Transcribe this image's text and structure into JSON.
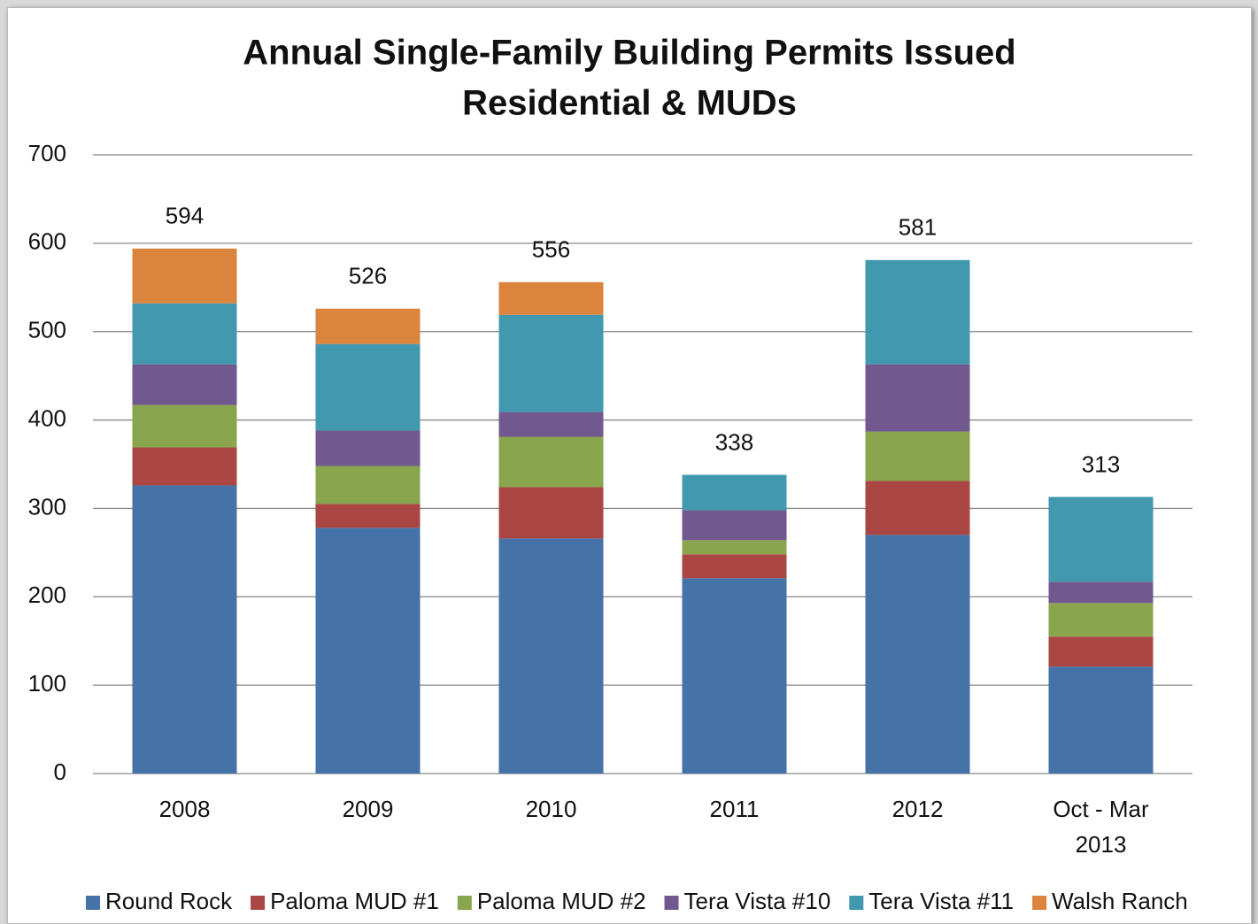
{
  "chart_data": {
    "type": "stacked_bar",
    "title": "Annual Single-Family Building Permits Issued",
    "subtitle": "Residential & MUDs",
    "categories": [
      "2008",
      "2009",
      "2010",
      "2011",
      "2012",
      "Oct - Mar 2013"
    ],
    "series": [
      {
        "name": "Round Rock",
        "color": "#4572a7",
        "values": [
          326,
          278,
          266,
          221,
          270,
          121
        ]
      },
      {
        "name": "Paloma MUD #1",
        "color": "#aa4643",
        "values": [
          43,
          27,
          58,
          27,
          61,
          34
        ]
      },
      {
        "name": "Paloma MUD #2",
        "color": "#89a54e",
        "values": [
          48,
          43,
          57,
          16,
          56,
          38
        ]
      },
      {
        "name": "Tera Vista #10",
        "color": "#71588f",
        "values": [
          46,
          40,
          28,
          34,
          76,
          24
        ]
      },
      {
        "name": "Tera Vista #11",
        "color": "#4198af",
        "values": [
          69,
          98,
          110,
          40,
          118,
          96
        ]
      },
      {
        "name": "Walsh Ranch",
        "color": "#db843d",
        "values": [
          62,
          40,
          37,
          0,
          0,
          0
        ]
      }
    ],
    "totals": [
      594,
      526,
      556,
      338,
      581,
      313
    ],
    "ylim": [
      0,
      700
    ],
    "yticks": [
      0,
      100,
      200,
      300,
      400,
      500,
      600,
      700
    ],
    "grid": true,
    "legend": "bottom"
  }
}
